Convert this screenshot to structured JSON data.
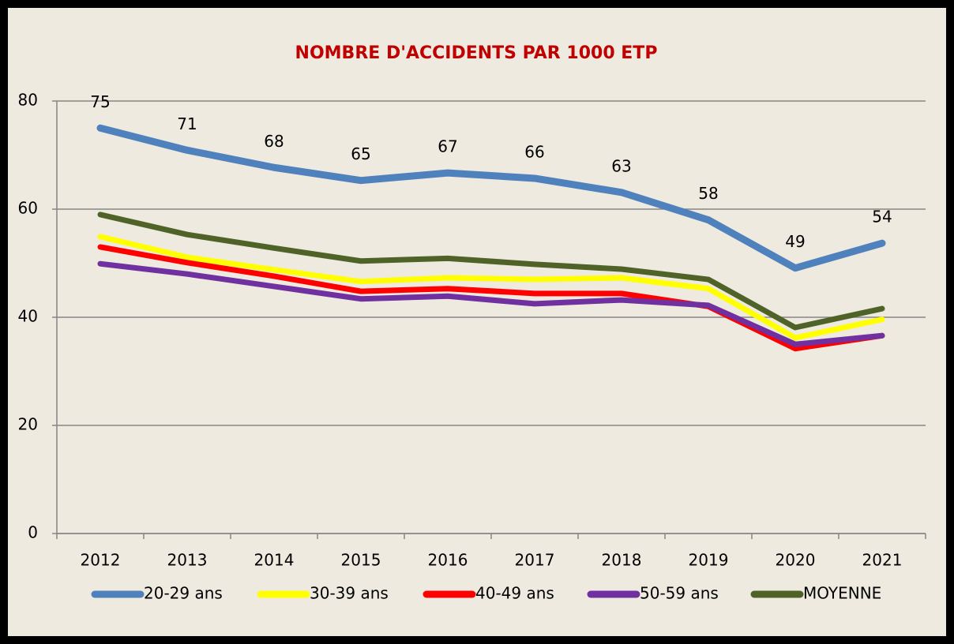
{
  "chart_data": {
    "type": "line",
    "title": "NOMBRE D'ACCIDENTS PAR 1000 ETP",
    "categories": [
      "2012",
      "2013",
      "2014",
      "2015",
      "2016",
      "2017",
      "2018",
      "2019",
      "2020",
      "2021"
    ],
    "series": [
      {
        "name": "20-29 ans",
        "color": "#4f81bd",
        "values": [
          75.0,
          70.9,
          67.7,
          65.3,
          66.7,
          65.7,
          63.1,
          58.0,
          49.1,
          53.7
        ],
        "value_labels": [
          "75",
          "71",
          "68",
          "65",
          "67",
          "66",
          "63",
          "58",
          "49",
          "54"
        ]
      },
      {
        "name": "30-39 ans",
        "color": "#ffff00",
        "values": [
          54.9,
          51.1,
          48.8,
          46.6,
          47.3,
          47.0,
          47.3,
          45.3,
          36.2,
          39.6
        ]
      },
      {
        "name": "40-49 ans",
        "color": "#ff0000",
        "values": [
          53.0,
          50.1,
          47.6,
          44.8,
          45.3,
          44.4,
          44.4,
          42.0,
          34.2,
          36.6
        ]
      },
      {
        "name": "50-59 ans",
        "color": "#7030a0",
        "values": [
          49.9,
          48.0,
          45.7,
          43.4,
          43.9,
          42.5,
          43.2,
          42.2,
          35.0,
          36.6
        ]
      },
      {
        "name": "MOYENNE",
        "color": "#4f6228",
        "values": [
          59.0,
          55.3,
          52.8,
          50.4,
          50.9,
          49.8,
          48.9,
          47.0,
          38.1,
          41.6
        ]
      }
    ],
    "ylim": [
      0,
      80
    ],
    "yticks": [
      0,
      20,
      40,
      60,
      80
    ],
    "grid": true,
    "legend": "bottom"
  }
}
